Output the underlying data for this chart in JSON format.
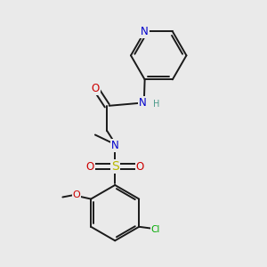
{
  "background_color": "#eaeaea",
  "bond_color": "#1a1a1a",
  "bond_width": 1.4,
  "atom_colors": {
    "N": "#0000cc",
    "O": "#cc0000",
    "S": "#b8b800",
    "Cl": "#00aa00",
    "H": "#4a9a8a",
    "C": "#1a1a1a"
  },
  "font_size_atom": 8.5,
  "font_size_small": 7.0,
  "font_size_cl": 7.5
}
